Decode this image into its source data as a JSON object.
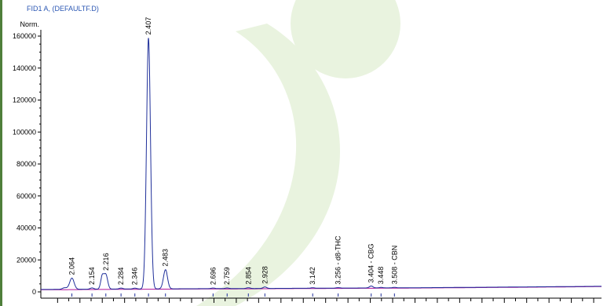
{
  "header": {
    "signal_label": "FID1 A,  (DEFAULTF.D)"
  },
  "colors": {
    "trace": "#1f2f9a",
    "baseline": "#b0139a",
    "axis": "#000000",
    "watermark": "#e9f3df",
    "leftbar": "#4f7f3b"
  },
  "chart_data": {
    "type": "line",
    "title": "FID1 A,  (DEFAULTF.D)",
    "ylabel": "Norm.",
    "xlabel": "",
    "ylim": [
      0,
      160000
    ],
    "xlim": [
      1.925,
      4.435
    ],
    "yticks": [
      0,
      20000,
      40000,
      60000,
      80000,
      100000,
      120000,
      140000,
      160000
    ],
    "ytick_labels": [
      "0",
      "20000",
      "40000",
      "60000",
      "80000",
      "100000",
      "120000",
      "140000",
      "160000"
    ],
    "peaks": [
      {
        "label": "2.064",
        "rt": 2.064,
        "height": 7000,
        "width": 0.01
      },
      {
        "label": "2.154",
        "rt": 2.154,
        "height": 800,
        "width": 0.008
      },
      {
        "label": "2.216",
        "rt": 2.216,
        "height": 9000,
        "width": 0.008
      },
      {
        "label": "2.284",
        "rt": 2.284,
        "height": 600,
        "width": 0.008
      },
      {
        "label": "2.346",
        "rt": 2.346,
        "height": 500,
        "width": 0.008
      },
      {
        "label": "2.407",
        "rt": 2.407,
        "height": 157000,
        "width": 0.009
      },
      {
        "label": "2.483",
        "rt": 2.483,
        "height": 12000,
        "width": 0.009
      },
      {
        "label": "2.696",
        "rt": 2.696,
        "height": 400,
        "width": 0.008
      },
      {
        "label": "2.759",
        "rt": 2.759,
        "height": 400,
        "width": 0.008
      },
      {
        "label": "2.854",
        "rt": 2.854,
        "height": 500,
        "width": 0.008
      },
      {
        "label": "2.928",
        "rt": 2.928,
        "height": 900,
        "width": 0.008
      },
      {
        "label": "3.142",
        "rt": 3.142,
        "height": 300,
        "width": 0.008
      },
      {
        "label": "3.256 - d8-THC",
        "rt": 3.256,
        "height": 300,
        "width": 0.008
      },
      {
        "label": "3.404 - CBG",
        "rt": 3.404,
        "height": 1200,
        "width": 0.008
      },
      {
        "label": "3.448",
        "rt": 3.448,
        "height": 300,
        "width": 0.008
      },
      {
        "label": "3.508 - CBN",
        "rt": 3.508,
        "height": 300,
        "width": 0.008
      }
    ],
    "extra_peaks": [
      {
        "rt": 2.2,
        "height": 8000,
        "width": 0.007
      },
      {
        "rt": 2.032,
        "height": 1000,
        "width": 0.01
      }
    ],
    "baseline_drift": [
      {
        "x": 1.925,
        "y": 1500
      },
      {
        "x": 2.3,
        "y": 1800
      },
      {
        "x": 3.0,
        "y": 2200
      },
      {
        "x": 3.6,
        "y": 2600
      },
      {
        "x": 4.0,
        "y": 3000
      },
      {
        "x": 4.435,
        "y": 3500
      }
    ]
  }
}
